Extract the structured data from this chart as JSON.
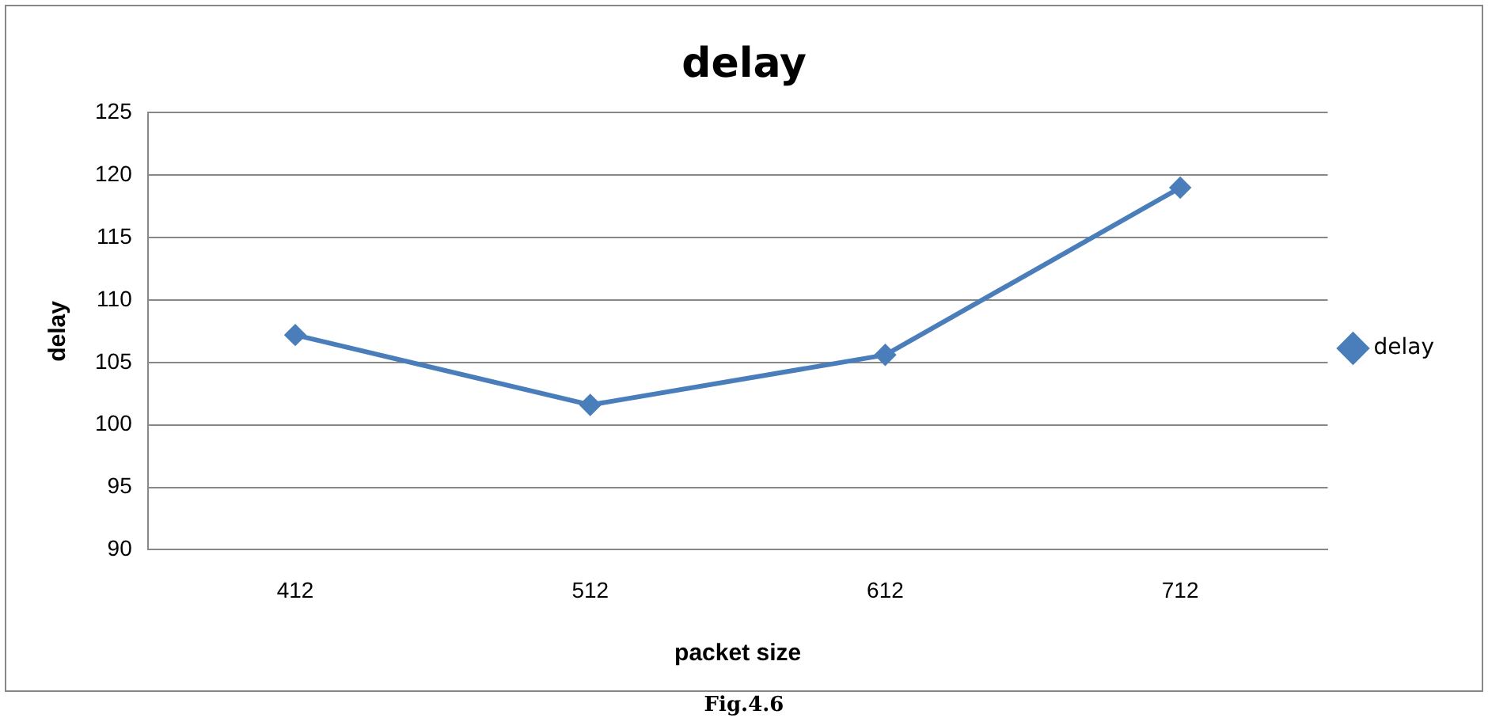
{
  "chart_data": {
    "type": "line",
    "title": "delay",
    "xlabel": "packet size",
    "ylabel": "delay",
    "categories": [
      "412",
      "512",
      "612",
      "712"
    ],
    "series": [
      {
        "name": "delay",
        "color": "#4a7ebb",
        "values": [
          107.2,
          101.6,
          105.6,
          119.0
        ]
      }
    ],
    "ylim": [
      90,
      125
    ],
    "yticks": [
      90,
      95,
      100,
      105,
      110,
      115,
      120,
      125
    ],
    "grid": "y",
    "legend": "right",
    "marker": "diamond",
    "line_style": "solid",
    "annotations": [
      "Fig.4.6"
    ]
  }
}
